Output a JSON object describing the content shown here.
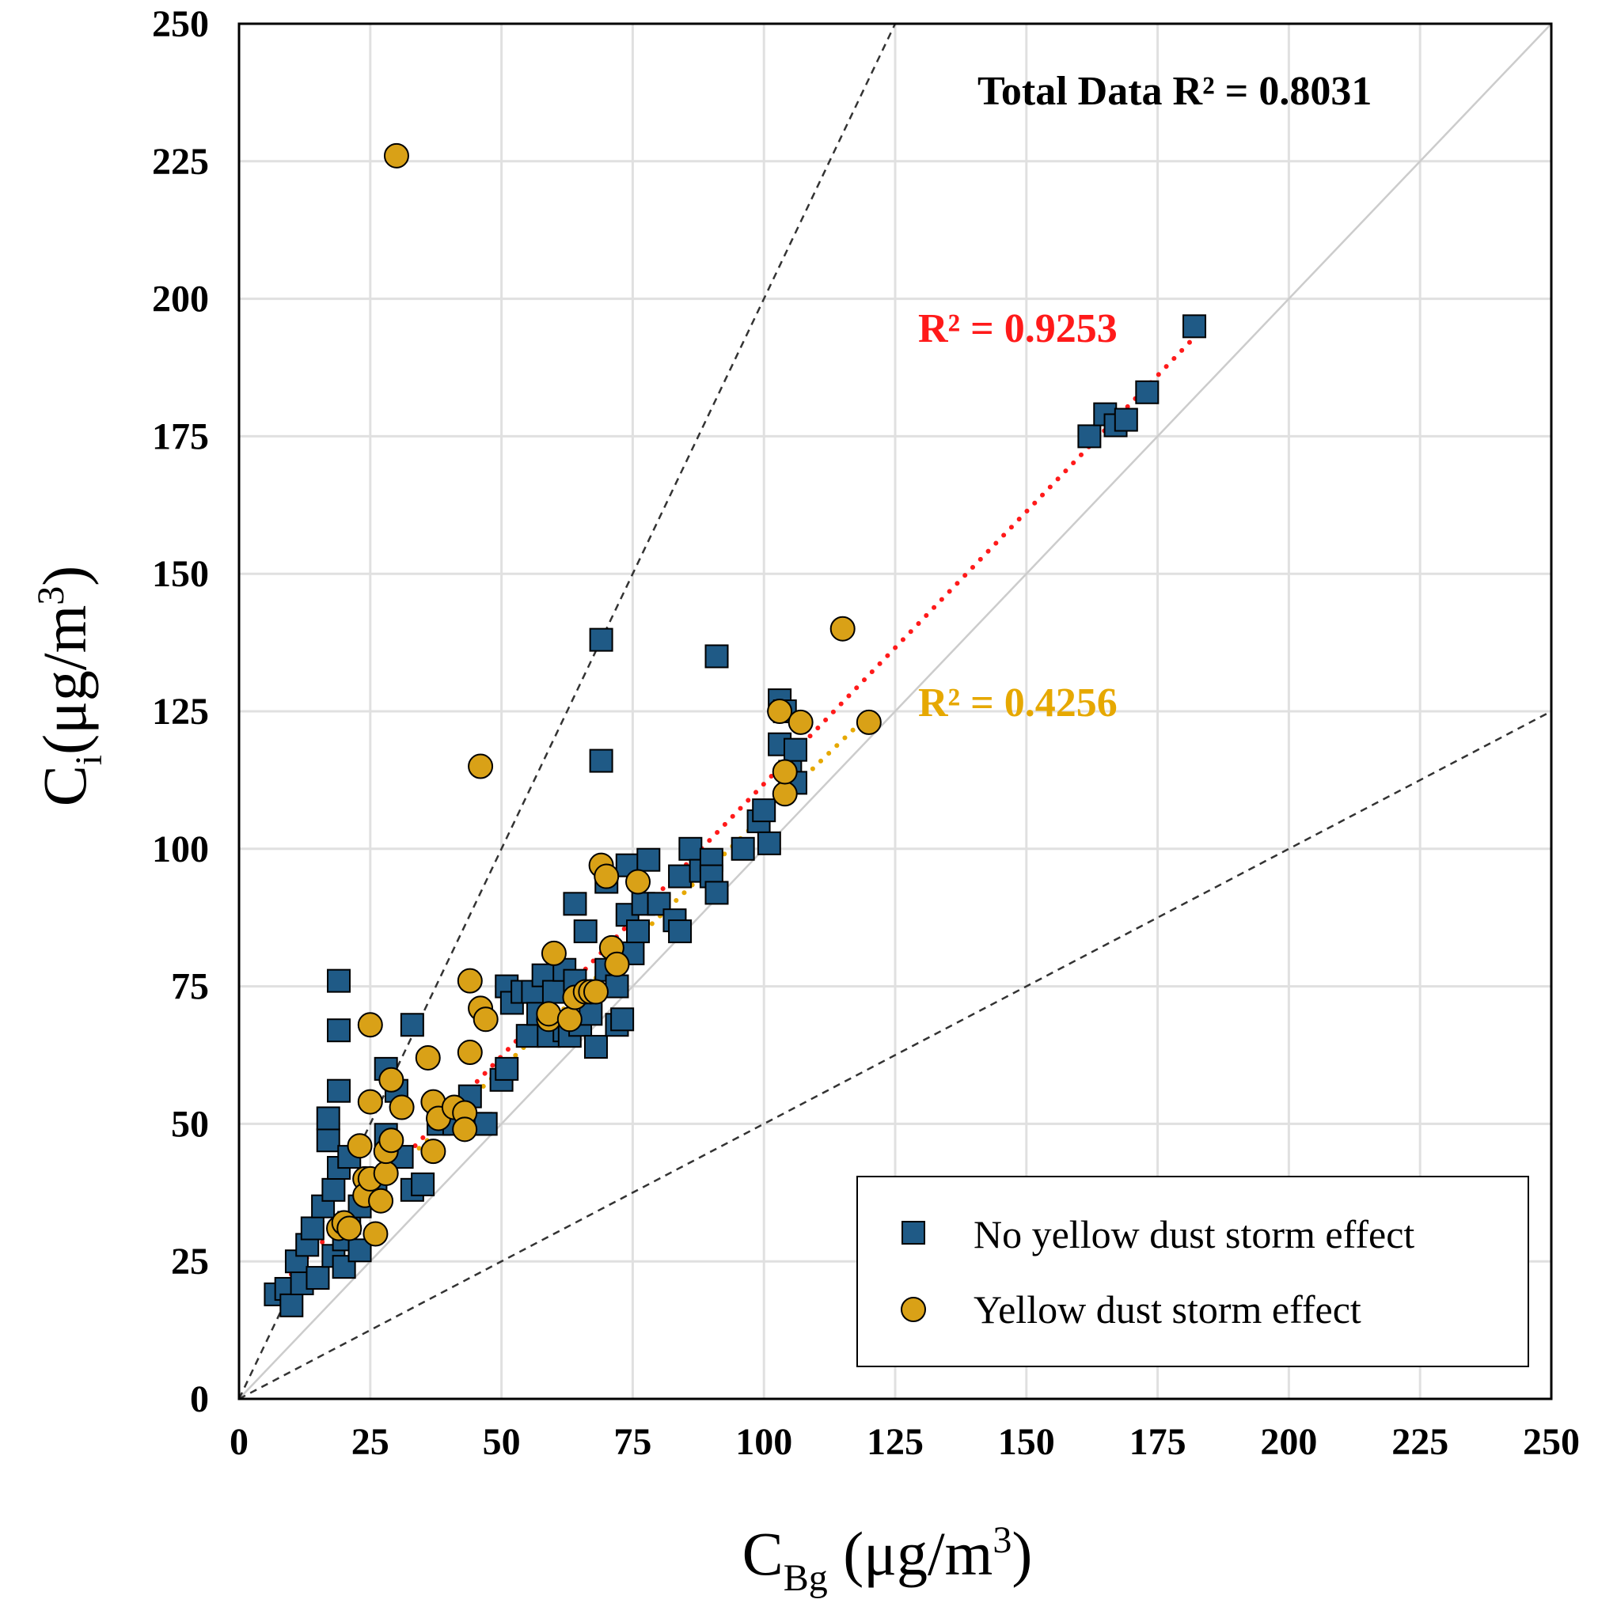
{
  "chart_data": {
    "type": "scatter",
    "xlabel": {
      "main": "C",
      "sub": "Bg",
      "unit": " (μg/m",
      "sup": "3",
      "close": ")"
    },
    "ylabel": {
      "main": "C",
      "sub": "i",
      "unit": "(μg/m",
      "sup": "3",
      "close": ")"
    },
    "xlim": [
      0,
      250
    ],
    "ylim": [
      0,
      250
    ],
    "xticks": [
      0,
      25,
      50,
      75,
      100,
      125,
      150,
      175,
      200,
      225,
      250
    ],
    "yticks": [
      0,
      25,
      50,
      75,
      100,
      125,
      150,
      175,
      200,
      225,
      250
    ],
    "grid": true,
    "legend_position": "bottom-right",
    "colors": {
      "no_dust": "#1f5a86",
      "dust": "#d9a117",
      "no_dust_trend": "#ff1a1a",
      "dust_trend": "#e6a800",
      "grid": "#e0e0e0",
      "one_to_one": "#cccccc",
      "dashed_guides": "#333333"
    },
    "annotations": [
      {
        "id": "total",
        "text": "Total Data R² = 0.8031",
        "color": "#000000"
      },
      {
        "id": "no_dust",
        "text": "R² = 0.9253",
        "color": "#ff1a1a"
      },
      {
        "id": "dust",
        "text": "R² = 0.4256",
        "color": "#e6a800"
      }
    ],
    "reference_lines": [
      {
        "type": "one-to-one",
        "slope": 1
      },
      {
        "type": "upper-bound",
        "slope": 2
      },
      {
        "type": "lower-bound",
        "slope": 0.5
      }
    ],
    "series": [
      {
        "name": "No yellow dust storm effect",
        "marker": "square",
        "trend": {
          "slope": 0.99,
          "intercept": 12.8,
          "x_range": [
            7,
            182
          ]
        },
        "points": [
          [
            7,
            19
          ],
          [
            9,
            20
          ],
          [
            10,
            17
          ],
          [
            11,
            25
          ],
          [
            12,
            21
          ],
          [
            13,
            28
          ],
          [
            14,
            31
          ],
          [
            15,
            22
          ],
          [
            16,
            35
          ],
          [
            17,
            47
          ],
          [
            17,
            51
          ],
          [
            18,
            26
          ],
          [
            18,
            38
          ],
          [
            19,
            42
          ],
          [
            19,
            67
          ],
          [
            19,
            76
          ],
          [
            19,
            56
          ],
          [
            20,
            29
          ],
          [
            20,
            24
          ],
          [
            21,
            44
          ],
          [
            21,
            32
          ],
          [
            23,
            35
          ],
          [
            23,
            27
          ],
          [
            26,
            38
          ],
          [
            28,
            48
          ],
          [
            28,
            60
          ],
          [
            30,
            56
          ],
          [
            31,
            44
          ],
          [
            33,
            68
          ],
          [
            33,
            38
          ],
          [
            35,
            39
          ],
          [
            38,
            50
          ],
          [
            41,
            50
          ],
          [
            44,
            55
          ],
          [
            46,
            50
          ],
          [
            47,
            50
          ],
          [
            50,
            58
          ],
          [
            51,
            60
          ],
          [
            51,
            75
          ],
          [
            52,
            72
          ],
          [
            54,
            74
          ],
          [
            55,
            66
          ],
          [
            56,
            74
          ],
          [
            57,
            70
          ],
          [
            58,
            77
          ],
          [
            59,
            66
          ],
          [
            60,
            74
          ],
          [
            62,
            67
          ],
          [
            62,
            78
          ],
          [
            63,
            66
          ],
          [
            64,
            90
          ],
          [
            64,
            76
          ],
          [
            65,
            68
          ],
          [
            66,
            85
          ],
          [
            67,
            70
          ],
          [
            68,
            64
          ],
          [
            69,
            138
          ],
          [
            69,
            116
          ],
          [
            70,
            78
          ],
          [
            70,
            94
          ],
          [
            72,
            68
          ],
          [
            72,
            75
          ],
          [
            73,
            69
          ],
          [
            74,
            97
          ],
          [
            74,
            88
          ],
          [
            75,
            81
          ],
          [
            76,
            85
          ],
          [
            77,
            90
          ],
          [
            78,
            98
          ],
          [
            80,
            90
          ],
          [
            83,
            87
          ],
          [
            84,
            85
          ],
          [
            84,
            95
          ],
          [
            86,
            100
          ],
          [
            88,
            96
          ],
          [
            90,
            98
          ],
          [
            90,
            95
          ],
          [
            91,
            92
          ],
          [
            91,
            135
          ],
          [
            96,
            100
          ],
          [
            99,
            105
          ],
          [
            100,
            107
          ],
          [
            101,
            101
          ],
          [
            103,
            119
          ],
          [
            103,
            127
          ],
          [
            104,
            125
          ],
          [
            105,
            114
          ],
          [
            106,
            112
          ],
          [
            106,
            118
          ],
          [
            162,
            175
          ],
          [
            165,
            179
          ],
          [
            167,
            177
          ],
          [
            169,
            178
          ],
          [
            173,
            183
          ],
          [
            182,
            195
          ]
        ]
      },
      {
        "name": "Yellow dust storm effect",
        "marker": "circle",
        "trend": {
          "slope": 0.92,
          "intercept": 14.0,
          "x_range": [
            19,
            120
          ]
        },
        "points": [
          [
            19,
            31
          ],
          [
            20,
            32
          ],
          [
            21,
            31
          ],
          [
            23,
            46
          ],
          [
            24,
            40
          ],
          [
            24,
            37
          ],
          [
            25,
            40
          ],
          [
            25,
            54
          ],
          [
            25,
            68
          ],
          [
            26,
            30
          ],
          [
            27,
            36
          ],
          [
            28,
            41
          ],
          [
            28,
            45
          ],
          [
            29,
            58
          ],
          [
            29,
            47
          ],
          [
            31,
            53
          ],
          [
            36,
            62
          ],
          [
            37,
            54
          ],
          [
            37,
            45
          ],
          [
            38,
            51
          ],
          [
            41,
            53
          ],
          [
            43,
            52
          ],
          [
            43,
            49
          ],
          [
            44,
            63
          ],
          [
            44,
            76
          ],
          [
            46,
            115
          ],
          [
            46,
            71
          ],
          [
            47,
            69
          ],
          [
            30,
            226
          ],
          [
            59,
            69
          ],
          [
            59,
            70
          ],
          [
            60,
            81
          ],
          [
            63,
            69
          ],
          [
            64,
            73
          ],
          [
            66,
            74
          ],
          [
            67,
            74
          ],
          [
            68,
            74
          ],
          [
            69,
            97
          ],
          [
            70,
            95
          ],
          [
            71,
            82
          ],
          [
            72,
            79
          ],
          [
            76,
            94
          ],
          [
            103,
            125
          ],
          [
            104,
            110
          ],
          [
            104,
            114
          ],
          [
            107,
            123
          ],
          [
            115,
            140
          ],
          [
            120,
            123
          ]
        ]
      }
    ]
  }
}
